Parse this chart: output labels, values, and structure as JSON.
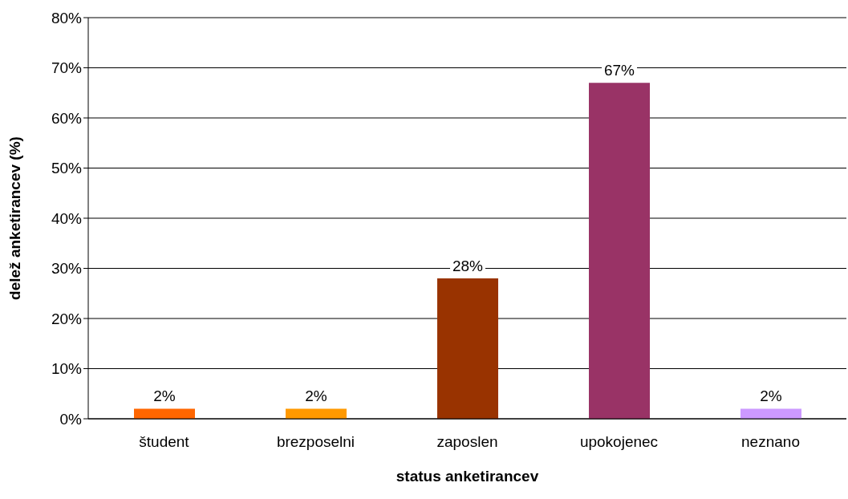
{
  "chart_data": {
    "type": "bar",
    "xlabel": "status anketirancev",
    "ylabel": "delež anketirancev (%)",
    "categories": [
      "študent",
      "brezposelni",
      "zaposlen",
      "upokojenec",
      "neznano"
    ],
    "values": [
      2,
      2,
      28,
      67,
      2
    ],
    "value_labels": [
      "2%",
      "2%",
      "28%",
      "67%",
      "2%"
    ],
    "colors": [
      "#ff6600",
      "#ff9900",
      "#993300",
      "#993366",
      "#cc99ff"
    ],
    "ylim": [
      0,
      80
    ],
    "yticks": [
      {
        "value": 0,
        "label": "0%"
      },
      {
        "value": 10,
        "label": "10%"
      },
      {
        "value": 20,
        "label": "20%"
      },
      {
        "value": 30,
        "label": "30%"
      },
      {
        "value": 40,
        "label": "40%"
      },
      {
        "value": 50,
        "label": "50%"
      },
      {
        "value": 60,
        "label": "60%"
      },
      {
        "value": 70,
        "label": "70%"
      },
      {
        "value": 80,
        "label": "80%"
      }
    ],
    "grid": "y",
    "legend": false
  }
}
